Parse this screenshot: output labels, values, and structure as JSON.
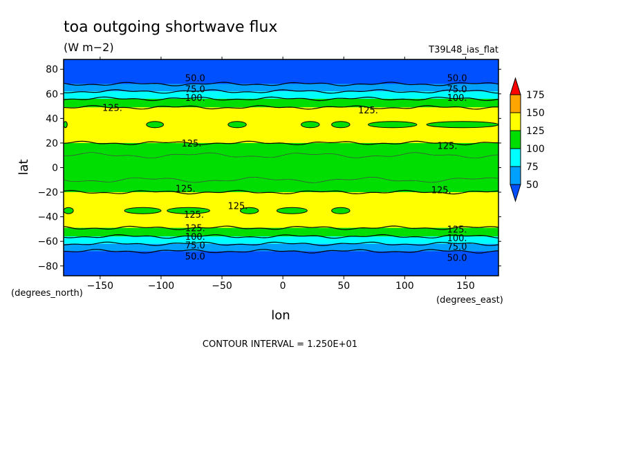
{
  "chart_data": {
    "type": "heatmap",
    "title": "toa outgoing shortwave flux",
    "units": "(W m−2)",
    "run_label": "T39L48_ias_flat",
    "xlabel": "lon",
    "ylabel": "lat",
    "x_unit_label": "(degrees_east)",
    "y_unit_label": "(degrees_north)",
    "xlim": [
      -180,
      177
    ],
    "ylim": [
      -88,
      88
    ],
    "x_ticks": [
      -150,
      -100,
      -50,
      0,
      50,
      100,
      150
    ],
    "x_tick_labels": [
      "−150",
      "−100",
      "−50",
      "0",
      "50",
      "100",
      "150"
    ],
    "y_ticks": [
      -80,
      -60,
      -40,
      -20,
      0,
      20,
      40,
      60,
      80
    ],
    "y_tick_labels": [
      "−80",
      "−60",
      "−40",
      "−20",
      "0",
      "20",
      "40",
      "60",
      "80"
    ],
    "footer": "CONTOUR INTERVAL = 1.250E+01",
    "colorbar": {
      "labels": [
        "175",
        "150",
        "125",
        "100",
        "75",
        "50"
      ],
      "colors": {
        "above_175": "#ff0000",
        "150_175": "#ffa500",
        "125_150": "#ffff00",
        "100_125": "#00dd00",
        "75_100": "#00ffff",
        "50_75": "#00a0ff",
        "below_50": "#0050ff"
      }
    },
    "zonal_profile": {
      "description_levels": "flux level (W m-2) per latitude band",
      "bands": [
        {
          "lat_from": 68,
          "lat_to": 88,
          "level": "below_50"
        },
        {
          "lat_from": 62,
          "lat_to": 68,
          "level": "50_75"
        },
        {
          "lat_from": 56,
          "lat_to": 62,
          "level": "75_100"
        },
        {
          "lat_from": 49,
          "lat_to": 56,
          "level": "100_125"
        },
        {
          "lat_from": 20,
          "lat_to": 49,
          "level": "125_150"
        },
        {
          "lat_from": -20,
          "lat_to": 20,
          "level": "100_125"
        },
        {
          "lat_from": -49,
          "lat_to": -20,
          "level": "125_150"
        },
        {
          "lat_from": -56,
          "lat_to": -49,
          "level": "100_125"
        },
        {
          "lat_from": -62,
          "lat_to": -56,
          "level": "75_100"
        },
        {
          "lat_from": -68,
          "lat_to": -62,
          "level": "50_75"
        },
        {
          "lat_from": -88,
          "lat_to": -68,
          "level": "below_50"
        }
      ],
      "green_patches": [
        {
          "lat": 35,
          "lon_ranges": [
            [
              -180,
              -177
            ],
            [
              -112,
              -98
            ],
            [
              -45,
              -30
            ],
            [
              15,
              30
            ],
            [
              40,
              55
            ],
            [
              70,
              110
            ],
            [
              118,
              177
            ]
          ]
        },
        {
          "lat": -35,
          "lon_ranges": [
            [
              -180,
              -172
            ],
            [
              -130,
              -100
            ],
            [
              -95,
              -60
            ],
            [
              -35,
              -20
            ],
            [
              -5,
              20
            ],
            [
              40,
              55
            ]
          ]
        }
      ]
    },
    "contour_labels": [
      {
        "text": "50.0",
        "lon": -72,
        "lat": 73
      },
      {
        "text": "75.0",
        "lon": -72,
        "lat": 64
      },
      {
        "text": "100.",
        "lon": -72,
        "lat": 57
      },
      {
        "text": "125.",
        "lon": -140,
        "lat": 49
      },
      {
        "text": "50.0",
        "lon": 143,
        "lat": 73
      },
      {
        "text": "75.0",
        "lon": 143,
        "lat": 64
      },
      {
        "text": "100.",
        "lon": 143,
        "lat": 57
      },
      {
        "text": "125.",
        "lon": 70,
        "lat": 47
      },
      {
        "text": "125.",
        "lon": -75,
        "lat": 20
      },
      {
        "text": "125.",
        "lon": 135,
        "lat": 18
      },
      {
        "text": "125.",
        "lon": -80,
        "lat": -17
      },
      {
        "text": "125.",
        "lon": 130,
        "lat": -18
      },
      {
        "text": "125.",
        "lon": -37,
        "lat": -31
      },
      {
        "text": "125.",
        "lon": -73,
        "lat": -38
      },
      {
        "text": "125.",
        "lon": -72,
        "lat": -49
      },
      {
        "text": "100.",
        "lon": -72,
        "lat": -56
      },
      {
        "text": "75.0",
        "lon": -72,
        "lat": -63
      },
      {
        "text": "50.0",
        "lon": -72,
        "lat": -72
      },
      {
        "text": "125.",
        "lon": 143,
        "lat": -50
      },
      {
        "text": "100.",
        "lon": 143,
        "lat": -57
      },
      {
        "text": "75.0",
        "lon": 143,
        "lat": -64
      },
      {
        "text": "50.0",
        "lon": 143,
        "lat": -73
      }
    ]
  }
}
